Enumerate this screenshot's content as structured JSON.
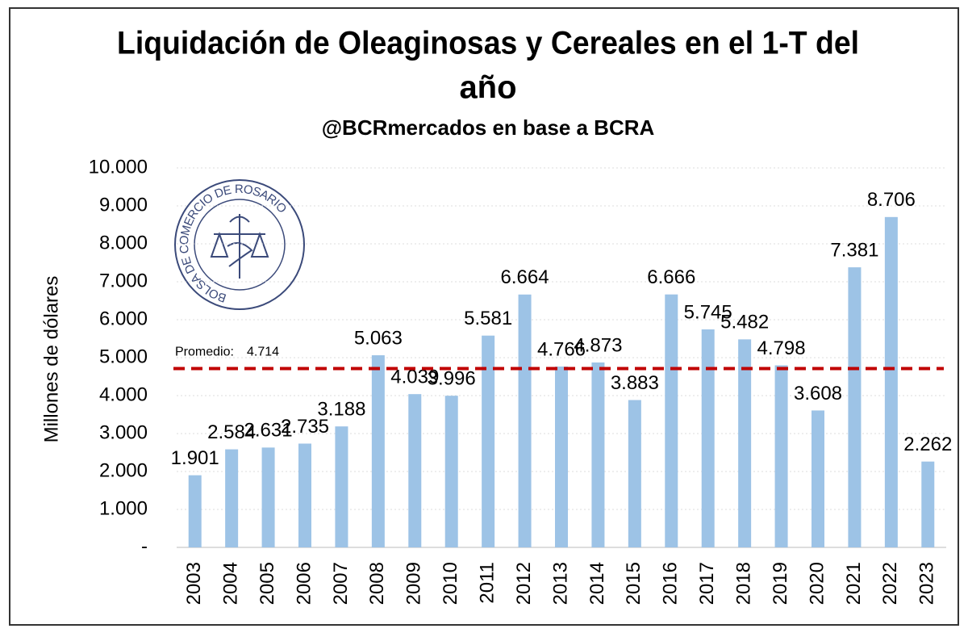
{
  "chart_data": {
    "type": "bar",
    "title_lines": [
      "Liquidación de Oleaginosas y Cereales en el 1-T del",
      "año"
    ],
    "subtitle": "@BCRmercados en base a BCRA",
    "y_label": "Millones de dólares",
    "logo_text": "BOLSA DE COMERCIO DE ROSARIO",
    "categories": [
      "2003",
      "2004",
      "2005",
      "2006",
      "2007",
      "2008",
      "2009",
      "2010",
      "2011",
      "2012",
      "2013",
      "2014",
      "2015",
      "2016",
      "2017",
      "2018",
      "2019",
      "2020",
      "2021",
      "2022",
      "2023"
    ],
    "values": [
      1901,
      2584,
      2631,
      2735,
      3188,
      5063,
      4039,
      3996,
      5581,
      6664,
      4766,
      4873,
      3883,
      6666,
      5745,
      5482,
      4798,
      3608,
      7381,
      8706,
      2262
    ],
    "value_labels": [
      "1.901",
      "2.584",
      "2.631",
      "2.735",
      "3.188",
      "5.063",
      "4.039",
      "3.996",
      "5.581",
      "6.664",
      "4.766",
      "4.873",
      "3.883",
      "6.666",
      "5.745",
      "5.482",
      "4.798",
      "3.608",
      "7.381",
      "8.706",
      "2.262"
    ],
    "color": "#9dc3e6",
    "average_label": "Promedio:",
    "average": {
      "value": 4714,
      "label": "4.714"
    },
    "average_color": "#c00000",
    "ylim": [
      0,
      10000
    ],
    "yticks": [
      {
        "value": 0,
        "label": "-"
      },
      {
        "value": 1000,
        "label": "1.000"
      },
      {
        "value": 2000,
        "label": "2.000"
      },
      {
        "value": 3000,
        "label": "3.000"
      },
      {
        "value": 4000,
        "label": "4.000"
      },
      {
        "value": 5000,
        "label": "5.000"
      },
      {
        "value": 6000,
        "label": "6.000"
      },
      {
        "value": 7000,
        "label": "7.000"
      },
      {
        "value": 8000,
        "label": "8.000"
      },
      {
        "value": 9000,
        "label": "9.000"
      },
      {
        "value": 10000,
        "label": "10.000"
      }
    ],
    "grid": true
  }
}
